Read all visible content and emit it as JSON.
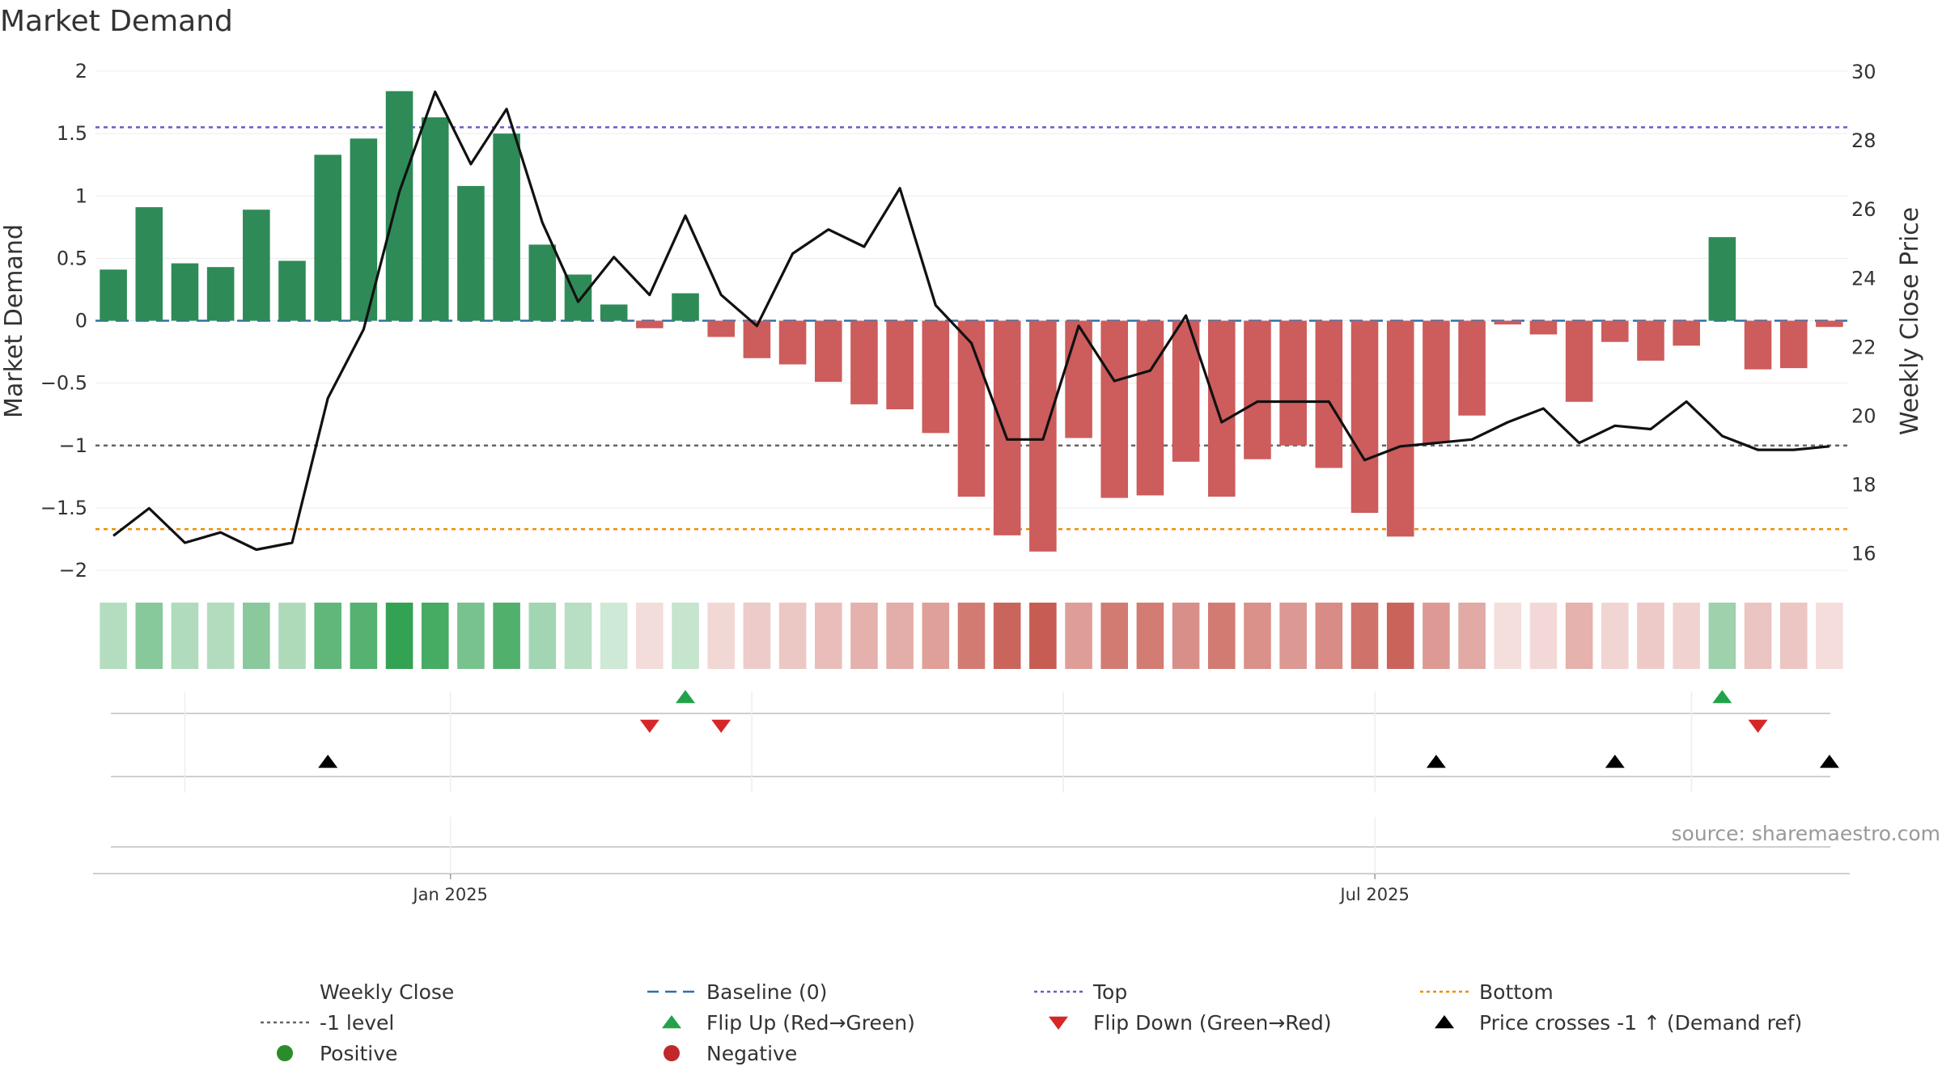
{
  "chart_data": {
    "type": "bar",
    "title": "Market Demand",
    "ylabel": "Market Demand",
    "y2label": "Weekly Close Price",
    "ylim": [
      -2,
      2
    ],
    "y2lim": [
      15.5,
      30
    ],
    "yticks": [
      2,
      1.5,
      1,
      0.5,
      0,
      -0.5,
      -1,
      -1.5,
      -2
    ],
    "ytick_labels": [
      "2",
      "1.5",
      "1",
      "0.5",
      "0",
      "−0.5",
      "−1",
      "−1.5",
      "−2"
    ],
    "y2ticks": [
      30,
      28,
      26,
      24,
      22,
      20,
      18,
      16
    ],
    "levels": {
      "top": 1.55,
      "bottom": -1.67,
      "minus_one": -1,
      "baseline": 0
    },
    "dates": [
      "2024-10-27",
      "2024-11-03",
      "2024-11-10",
      "2024-11-17",
      "2024-11-24",
      "2024-12-01",
      "2024-12-08",
      "2024-12-15",
      "2024-12-22",
      "2024-12-29",
      "2025-01-05",
      "2025-01-12",
      "2025-01-19",
      "2025-01-26",
      "2025-02-02",
      "2025-02-09",
      "2025-02-16",
      "2025-02-23",
      "2025-03-02",
      "2025-03-09",
      "2025-03-16",
      "2025-03-23",
      "2025-03-30",
      "2025-04-06",
      "2025-04-13",
      "2025-04-20",
      "2025-04-27",
      "2025-05-04",
      "2025-05-11",
      "2025-05-18",
      "2025-05-25",
      "2025-06-01",
      "2025-06-08",
      "2025-06-15",
      "2025-06-22",
      "2025-06-29",
      "2025-07-06",
      "2025-07-13",
      "2025-07-20",
      "2025-07-27",
      "2025-08-03",
      "2025-08-10",
      "2025-08-17",
      "2025-08-24",
      "2025-08-31",
      "2025-09-07",
      "2025-09-14",
      "2025-09-21",
      "2025-09-28"
    ],
    "demand": [
      0.41,
      0.91,
      0.46,
      0.43,
      0.89,
      0.48,
      1.33,
      1.46,
      1.84,
      1.63,
      1.08,
      1.5,
      0.61,
      0.37,
      0.13,
      -0.06,
      0.22,
      -0.13,
      -0.3,
      -0.35,
      -0.49,
      -0.67,
      -0.71,
      -0.9,
      -1.41,
      -1.72,
      -1.85,
      -0.94,
      -1.42,
      -1.4,
      -1.13,
      -1.41,
      -1.11,
      -1.0,
      -1.18,
      -1.54,
      -1.73,
      -0.98,
      -0.76,
      -0.03,
      -0.11,
      -0.65,
      -0.17,
      -0.32,
      -0.2,
      0.67,
      -0.39,
      -0.38,
      -0.05
    ],
    "weekly_close": [
      16.5,
      17.3,
      16.3,
      16.6,
      16.1,
      16.3,
      20.5,
      22.5,
      26.5,
      29.4,
      27.3,
      28.9,
      25.6,
      23.3,
      24.6,
      23.5,
      25.8,
      23.5,
      22.6,
      24.7,
      25.4,
      24.9,
      26.6,
      23.2,
      22.1,
      19.3,
      19.3,
      22.6,
      21.0,
      21.3,
      22.9,
      19.8,
      20.4,
      20.4,
      20.4,
      18.7,
      19.1,
      19.2,
      19.3,
      19.8,
      20.2,
      19.2,
      19.7,
      19.6,
      20.4,
      19.4,
      19.0,
      19.0,
      19.1
    ],
    "flip_up_weeks": [
      16,
      45
    ],
    "flip_down_weeks": [
      15,
      17,
      46
    ],
    "price_cross_weeks": [
      6,
      37,
      42,
      48
    ],
    "x_tick_labels": [
      {
        "label": "Jan 2025",
        "date": "2025-01-01"
      },
      {
        "label": "Jul 2025",
        "date": "2025-07-01"
      }
    ],
    "source": "source: sharemaestro.com",
    "colors": {
      "positive": "#2e8b57",
      "negative": "#cd5c5c",
      "line": "#111111",
      "baseline": "#2f6fa8",
      "top": "#6a5acd",
      "bottom": "#f08c00",
      "minus_one": "#666666",
      "flip_up": "#22a34a",
      "flip_down": "#d62728",
      "cross": "#000000",
      "legend_positive": "#2a8c2a",
      "legend_negative": "#c0282c"
    },
    "legend": [
      {
        "key": "weekly_close",
        "label": "Weekly Close",
        "symbol": "line"
      },
      {
        "key": "baseline",
        "label": "Baseline (0)",
        "symbol": "dash"
      },
      {
        "key": "top",
        "label": "Top",
        "symbol": "dot"
      },
      {
        "key": "bottom",
        "label": "Bottom",
        "symbol": "dot"
      },
      {
        "key": "minus_one",
        "label": "-1 level",
        "symbol": "dot"
      },
      {
        "key": "flip_up",
        "label": "Flip Up (Red→Green)",
        "symbol": "tri-up"
      },
      {
        "key": "flip_down",
        "label": "Flip Down (Green→Red)",
        "symbol": "tri-down"
      },
      {
        "key": "cross",
        "label": "Price crosses -1 ↑ (Demand ref)",
        "symbol": "tri-up"
      },
      {
        "key": "legend_positive",
        "label": "Positive",
        "symbol": "circle"
      },
      {
        "key": "legend_negative",
        "label": "Negative",
        "symbol": "circle"
      }
    ]
  }
}
